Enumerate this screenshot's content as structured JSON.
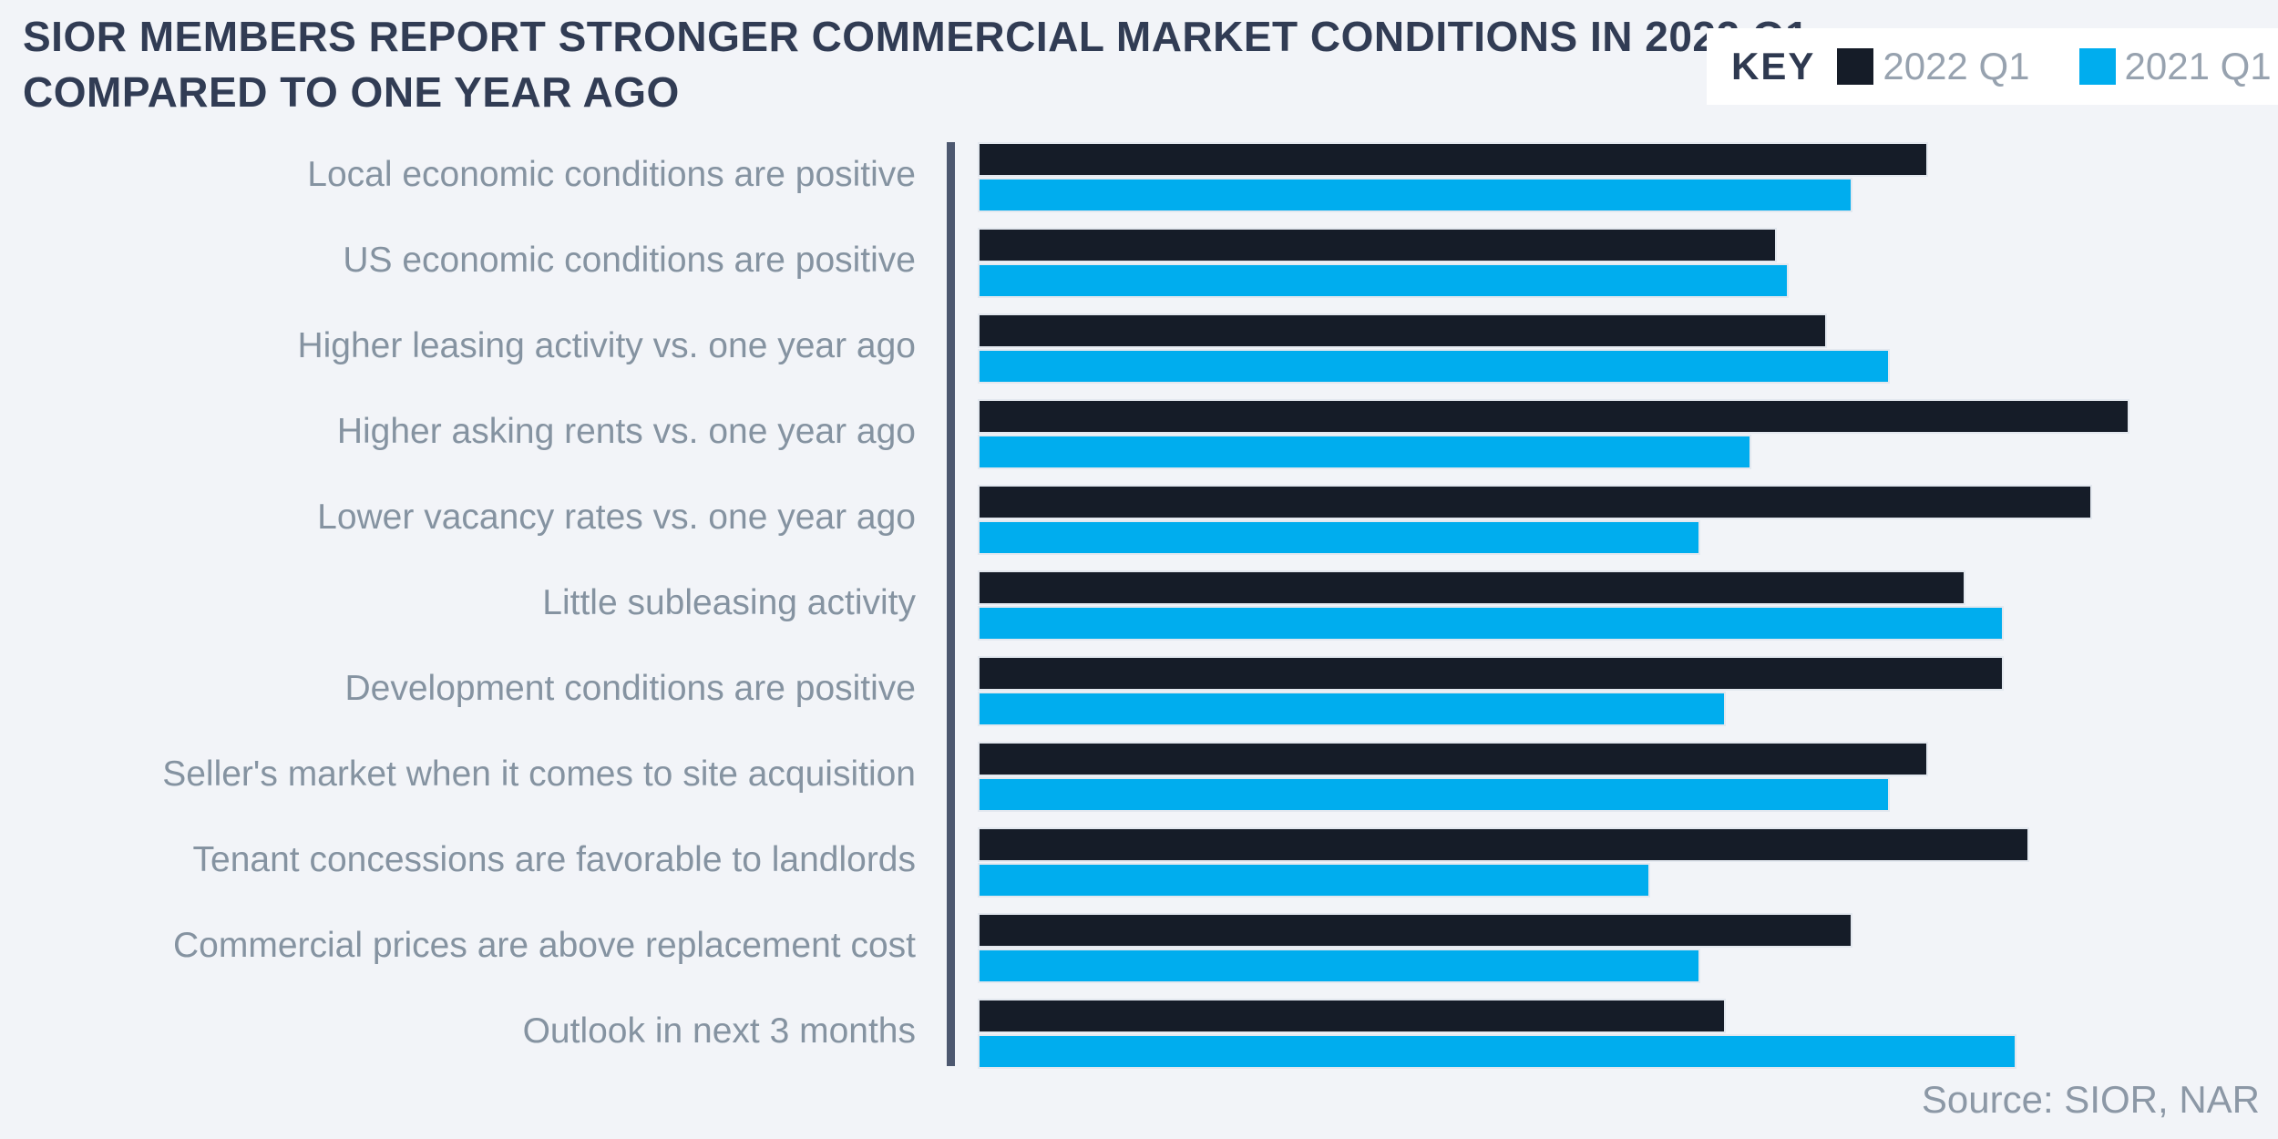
{
  "title": {
    "line1": "SIOR MEMBERS REPORT STRONGER COMMERCIAL MARKET CONDITIONS IN 2022 Q1",
    "line2": "COMPARED TO ONE YEAR AGO"
  },
  "key": {
    "label": "KEY"
  },
  "source": "Source: SIOR, NAR",
  "colors": {
    "background": "#f2f4f8",
    "title_text": "#313c54",
    "label_text": "#8593a1",
    "legend_text": "#97a2af",
    "legend_box": "#ffffff",
    "axis_divider": "#4d5870",
    "series_2022": "#151c28",
    "series_2021": "#00adee"
  },
  "chart_data": {
    "type": "bar",
    "orientation": "horizontal",
    "title": "SIOR MEMBERS REPORT STRONGER COMMERCIAL MARKET CONDITIONS IN 2022 Q1 COMPARED TO ONE YEAR AGO",
    "xlabel": "",
    "ylabel": "",
    "xlim": [
      0,
      100
    ],
    "grid": false,
    "legend_position": "top-right",
    "categories": [
      "Local economic conditions are positive",
      "US economic conditions are positive",
      "Higher leasing activity vs. one year ago",
      "Higher asking rents vs. one year ago",
      "Lower vacancy rates vs. one year ago",
      "Little subleasing activity",
      "Development conditions are positive",
      "Seller's market when it comes to site acquisition",
      "Tenant concessions are favorable to landlords",
      "Commercial prices are above replacement cost",
      "Outlook in next 3 months"
    ],
    "series": [
      {
        "name": "2022 Q1",
        "color": "#151c28",
        "values": [
          75,
          63,
          67,
          91,
          88,
          78,
          81,
          75,
          83,
          69,
          59
        ]
      },
      {
        "name": "2021 Q1",
        "color": "#00adee",
        "values": [
          69,
          64,
          72,
          61,
          57,
          81,
          59,
          72,
          53,
          57,
          82
        ]
      }
    ]
  }
}
